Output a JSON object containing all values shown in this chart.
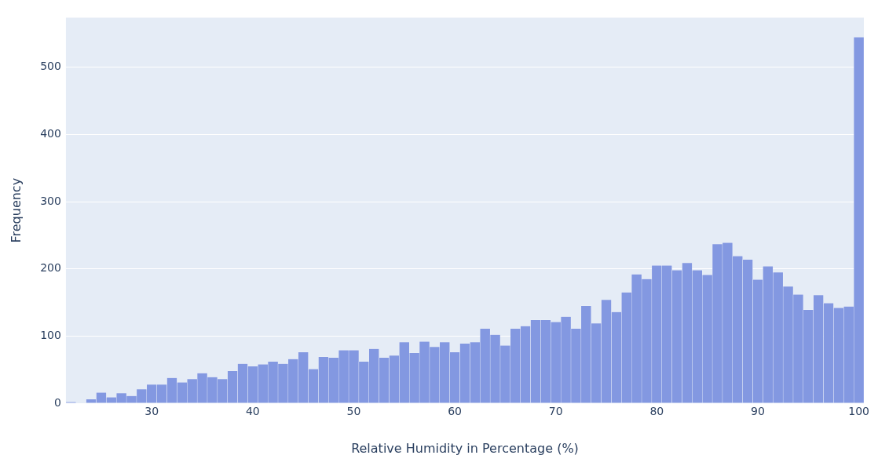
{
  "chart_data": {
    "type": "histogram",
    "xlabel": "Relative Humidity in Percentage (%)",
    "ylabel": "Frequency",
    "bins": [
      21.5,
      22.5,
      23.5,
      24.5,
      25.5,
      26.5,
      27.5,
      28.5,
      29.5,
      30.5,
      31.5,
      32.5,
      33.5,
      34.5,
      35.5,
      36.5,
      37.5,
      38.5,
      39.5,
      40.5,
      41.5,
      42.5,
      43.5,
      44.5,
      45.5,
      46.5,
      47.5,
      48.5,
      49.5,
      50.5,
      51.5,
      52.5,
      53.5,
      54.5,
      55.5,
      56.5,
      57.5,
      58.5,
      59.5,
      60.5,
      61.5,
      62.5,
      63.5,
      64.5,
      65.5,
      66.5,
      67.5,
      68.5,
      69.5,
      70.5,
      71.5,
      72.5,
      73.5,
      74.5,
      75.5,
      76.5,
      77.5,
      78.5,
      79.5,
      80.5,
      81.5,
      82.5,
      83.5,
      84.5,
      85.5,
      86.5,
      87.5,
      88.5,
      89.5,
      90.5,
      91.5,
      92.5,
      93.5,
      94.5,
      95.5,
      96.5,
      97.5,
      98.5,
      99.5,
      100.5
    ],
    "values": [
      2,
      0,
      6,
      16,
      9,
      15,
      11,
      21,
      28,
      28,
      38,
      31,
      36,
      45,
      39,
      36,
      48,
      59,
      55,
      58,
      62,
      59,
      66,
      76,
      51,
      69,
      68,
      79,
      79,
      62,
      81,
      68,
      71,
      91,
      75,
      92,
      84,
      91,
      76,
      89,
      91,
      111,
      102,
      86,
      111,
      115,
      124,
      124,
      121,
      129,
      111,
      145,
      119,
      154,
      136,
      165,
      192,
      185,
      205,
      205,
      198,
      209,
      198,
      191,
      237,
      239,
      219,
      214,
      184,
      204,
      195,
      174,
      162,
      139,
      161,
      149,
      142,
      144,
      545
    ],
    "color": "#8398e1",
    "xlim": [
      21.5,
      100.5
    ],
    "xticks": [
      30,
      40,
      50,
      60,
      70,
      80,
      90,
      100
    ],
    "ylim": [
      0,
      574
    ],
    "yticks": [
      0,
      100,
      200,
      300,
      400,
      500
    ],
    "grid": "y",
    "legend": false
  }
}
